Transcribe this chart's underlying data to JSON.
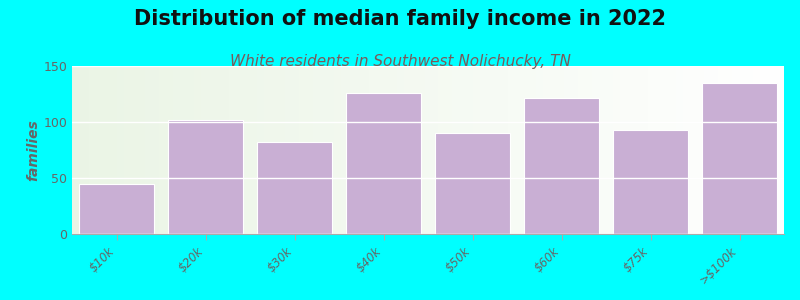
{
  "title": "Distribution of median family income in 2022",
  "subtitle": "White residents in Southwest Nolichucky, TN",
  "categories": [
    "$10k",
    "$20k",
    "$30k",
    "$40k",
    "$50k",
    "$60k",
    "$75k",
    ">$100k"
  ],
  "values": [
    45,
    102,
    82,
    126,
    90,
    121,
    93,
    135
  ],
  "bar_color": "#c9afd4",
  "background_color": "#00ffff",
  "plot_bg_color": "#f5f8f0",
  "ylabel": "families",
  "ylim": [
    0,
    150
  ],
  "yticks": [
    0,
    50,
    100,
    150
  ],
  "title_fontsize": 15,
  "subtitle_fontsize": 11,
  "subtitle_color": "#7a5a5a",
  "title_color": "#111111",
  "tick_label_color": "#666666",
  "bar_edge_color": "#ffffff",
  "bar_width": 0.85
}
